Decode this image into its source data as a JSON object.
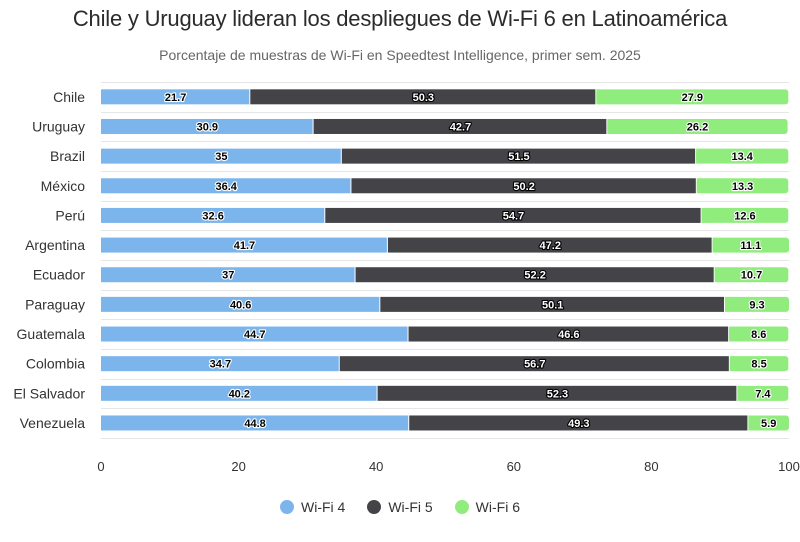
{
  "header": {
    "title": "Chile y Uruguay lideran los despliegues de Wi-Fi 6 en Latinoamérica",
    "subtitle": "Porcentaje de muestras de Wi-Fi en Speedtest Intelligence, primer sem. 2025"
  },
  "chart_data": {
    "type": "bar",
    "orientation": "horizontal",
    "stacked": true,
    "title": "Chile y Uruguay lideran los despliegues de Wi-Fi 6 en Latinoamérica",
    "subtitle": "Porcentaje de muestras de Wi-Fi en Speedtest Intelligence, primer sem. 2025",
    "xlabel": "",
    "ylabel": "",
    "xlim": [
      0,
      100
    ],
    "xticks": [
      0,
      20,
      40,
      60,
      80,
      100
    ],
    "grid": true,
    "legend_position": "bottom-center",
    "categories": [
      "Chile",
      "Uruguay",
      "Brazil",
      "México",
      "Perú",
      "Argentina",
      "Ecuador",
      "Paraguay",
      "Guatemala",
      "Colombia",
      "El Salvador",
      "Venezuela"
    ],
    "series": [
      {
        "name": "Wi-Fi 4",
        "color": "#7cb5ec",
        "values": [
          21.7,
          30.9,
          35,
          36.4,
          32.6,
          41.7,
          37,
          40.6,
          44.7,
          34.7,
          40.2,
          44.8
        ]
      },
      {
        "name": "Wi-Fi 5",
        "color": "#434348",
        "values": [
          50.3,
          42.7,
          51.5,
          50.2,
          54.7,
          47.2,
          52.2,
          50.1,
          46.6,
          56.7,
          52.3,
          49.3
        ]
      },
      {
        "name": "Wi-Fi 6",
        "color": "#90ed7d",
        "values": [
          27.9,
          26.2,
          13.4,
          13.3,
          12.6,
          11.1,
          10.7,
          9.3,
          8.6,
          8.5,
          7.4,
          5.9
        ]
      }
    ]
  },
  "legend": {
    "items": [
      {
        "label": "Wi-Fi 4",
        "color": "#7cb5ec"
      },
      {
        "label": "Wi-Fi 5",
        "color": "#434348"
      },
      {
        "label": "Wi-Fi 6",
        "color": "#90ed7d"
      }
    ]
  }
}
